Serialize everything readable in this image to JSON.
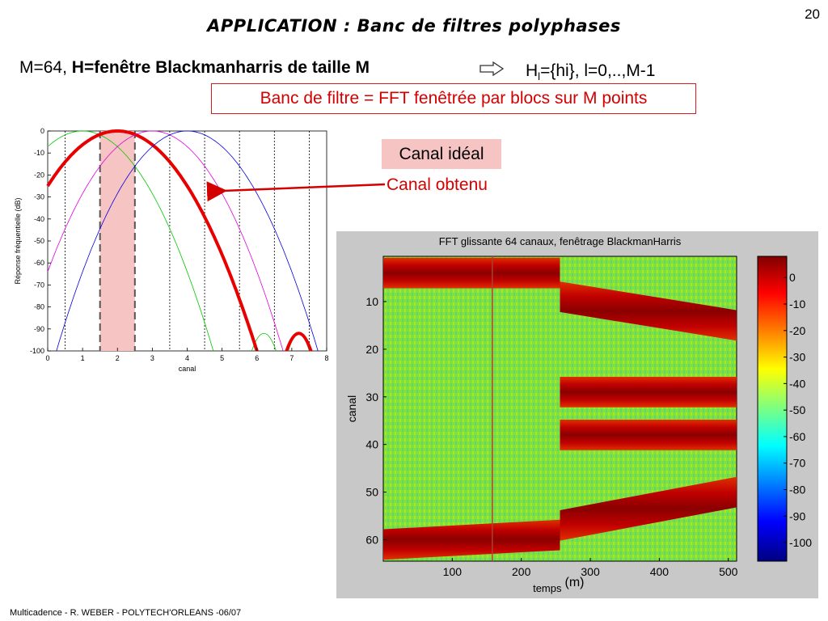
{
  "slide_number": "20",
  "title": "APPLICATION : Banc de filtres polyphases",
  "line1": {
    "prefix": "M=64, ",
    "bold": "H=fenêtre Blackmanharris de taille M"
  },
  "arrow_icon": "double-arrow-right-icon",
  "formula": {
    "h": "H",
    "sub": "l",
    "rest": "={hi}, l=0,..,M-1"
  },
  "redbox_text": "Banc de filtre = FFT fenêtrée par blocs sur M points",
  "label_ideal": "Canal idéal",
  "label_obtenu": "Canal obtenu",
  "footer": "Multicadence - R. WEBER - POLYTECH'ORLEANS -06/07",
  "chart_data": [
    {
      "type": "line",
      "title": "",
      "xlabel": "canal",
      "ylabel": "Réponse fréquentielle (dB)",
      "xlim": [
        0,
        8
      ],
      "ylim": [
        -100,
        0
      ],
      "xticks": [
        0,
        1,
        2,
        3,
        4,
        5,
        6,
        7,
        8
      ],
      "yticks": [
        0,
        -10,
        -20,
        -30,
        -40,
        -50,
        -60,
        -70,
        -80,
        -90,
        -100
      ],
      "ideal_band": [
        1.5,
        2.5
      ],
      "vlines_dotted": [
        0.5,
        3.5,
        4.5,
        5.5,
        6.5,
        7.5
      ],
      "vlines_dashed": [
        1.5,
        2.5
      ],
      "series": [
        {
          "color": "#00c800",
          "center": 1,
          "width": 3.75
        },
        {
          "color": "#e80000",
          "center": 2,
          "width": 4
        },
        {
          "color": "#e000e0",
          "center": 3,
          "width": 3.75
        },
        {
          "color": "#0000e0",
          "center": 4,
          "width": 3.75
        }
      ]
    },
    {
      "type": "heatmap",
      "title": "FFT glissante 64 canaux, fenêtrage BlackmanHarris",
      "xlabel": "temps",
      "xlabel_extra": "(m)",
      "ylabel": "canal",
      "xlim": [
        0,
        512
      ],
      "ylim": [
        1,
        64
      ],
      "xticks": [
        100,
        200,
        300,
        400,
        500
      ],
      "yticks": [
        10,
        20,
        30,
        40,
        50,
        60
      ],
      "colorbar_ticks": [
        0,
        -10,
        -20,
        -30,
        -40,
        -50,
        -60,
        -70,
        -80,
        -90,
        -100
      ],
      "marker_time": 158,
      "bands": [
        {
          "t_start": 0,
          "t_end": 256,
          "canal_start": 4,
          "canal_end": 4
        },
        {
          "t_start": 256,
          "t_end": 512,
          "canal_start": 9,
          "canal_end": 15
        },
        {
          "t_start": 256,
          "t_end": 512,
          "canal_start": 29,
          "canal_end": 29
        },
        {
          "t_start": 256,
          "t_end": 512,
          "canal_start": 38,
          "canal_end": 38
        },
        {
          "t_start": 0,
          "t_end": 256,
          "canal_start": 61,
          "canal_end": 59
        },
        {
          "t_start": 256,
          "t_end": 512,
          "canal_start": 57,
          "canal_end": 50
        }
      ]
    }
  ]
}
